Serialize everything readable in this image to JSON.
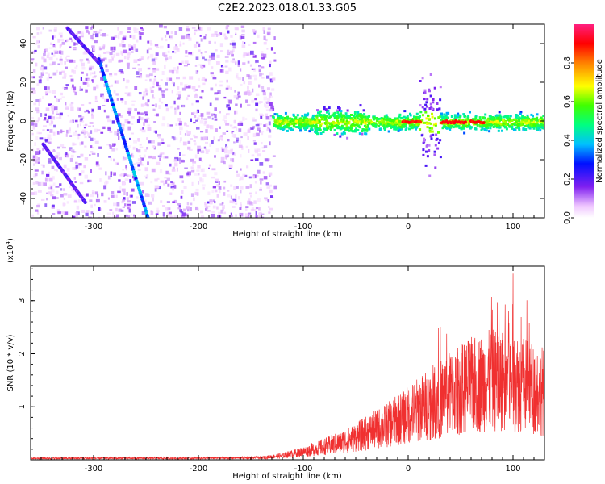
{
  "title": "C2E2.2023.018.01.33.G05",
  "colors": {
    "signal": "#f03030",
    "noise": "#7a10e8",
    "background": "#ffffff"
  },
  "chart_data": [
    {
      "type": "heatmap",
      "xlabel": "Height of straight line (km)",
      "ylabel": "Frequency (Hz)",
      "xlim": [
        -360,
        130
      ],
      "ylim": [
        -50,
        50
      ],
      "xticks": [
        -300,
        -200,
        -100,
        0,
        100
      ],
      "xtick_labels": [
        "-300",
        "-200",
        "-100",
        "0",
        "100"
      ],
      "yticks": [
        -40,
        -20,
        0,
        20,
        40
      ],
      "ytick_labels": [
        "-40",
        "-20",
        "0",
        "20",
        "40"
      ],
      "colorbar": {
        "label": "Normalized spectral amplitude",
        "range": [
          0,
          1
        ],
        "ticks": [
          0.0,
          0.2,
          0.4,
          0.6,
          0.8
        ],
        "tick_labels": [
          "0.0",
          "0.2",
          "0.4",
          "0.6",
          "0.8"
        ]
      },
      "features": [
        {
          "name": "diagonal streak 1",
          "points": [
            [
              -295,
              32
            ],
            [
              -248,
              -50
            ]
          ],
          "amplitude": 0.35
        },
        {
          "name": "diagonal streak 2",
          "points": [
            [
              -348,
              -12
            ],
            [
              -308,
              -42
            ]
          ],
          "amplitude": 0.2
        },
        {
          "name": "diagonal streak 3",
          "points": [
            [
              -325,
              48
            ],
            [
              -295,
              30
            ]
          ],
          "amplitude": 0.2
        },
        {
          "name": "main band",
          "x_range": [
            -130,
            130
          ],
          "frequency": 0,
          "amplitude": 0.9
        }
      ]
    },
    {
      "type": "line",
      "xlabel": "Height of straight line (km)",
      "ylabel": "SNR (10 * v/v)",
      "y_multiplier": "(x10",
      "y_multiplier_exp": "4",
      "xlim": [
        -360,
        130
      ],
      "ylim": [
        0,
        3.65
      ],
      "xticks": [
        -300,
        -200,
        -100,
        0,
        100
      ],
      "xtick_labels": [
        "-300",
        "-200",
        "-100",
        "0",
        "100"
      ],
      "yticks": [
        1,
        2,
        3
      ],
      "ytick_labels": [
        "1",
        "2",
        "3"
      ],
      "series": [
        {
          "x": [
            -360,
            -300,
            -200,
            -140,
            -120,
            -100,
            -80,
            -60,
            -40,
            -20,
            0,
            20,
            40,
            60,
            80,
            100,
            120,
            130
          ],
          "y": [
            0.03,
            0.03,
            0.03,
            0.04,
            0.08,
            0.15,
            0.25,
            0.35,
            0.5,
            0.65,
            0.85,
            1.05,
            1.25,
            1.4,
            1.5,
            1.5,
            1.35,
            1.3
          ]
        }
      ]
    }
  ]
}
